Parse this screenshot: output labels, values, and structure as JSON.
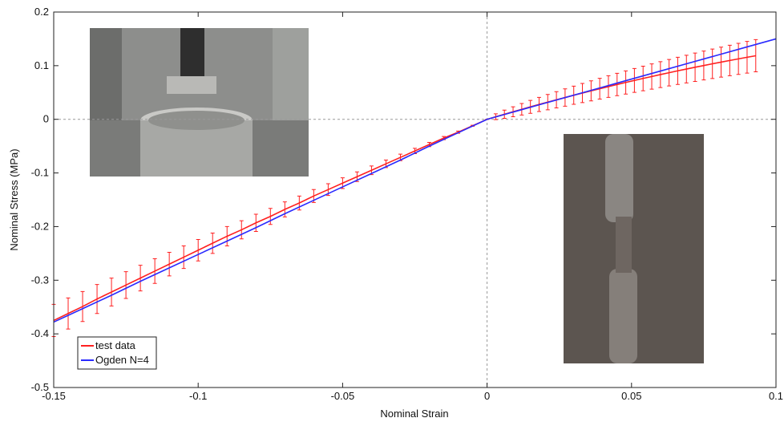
{
  "chart_data": {
    "type": "line",
    "x_label": "Nominal Strain",
    "y_label": "Nominal Stress (MPa)",
    "xlim": [
      -0.15,
      0.1
    ],
    "ylim": [
      -0.5,
      0.2
    ],
    "xticks": [
      -0.15,
      -0.1,
      -0.05,
      0,
      0.05,
      0.1
    ],
    "yticks": [
      -0.5,
      -0.4,
      -0.3,
      -0.2,
      -0.1,
      0,
      0.1,
      0.2
    ],
    "legend": "lower left",
    "series": [
      {
        "name": "test data",
        "color": "#ff2020",
        "x": [
          -0.15,
          -0.145,
          -0.14,
          -0.135,
          -0.13,
          -0.125,
          -0.12,
          -0.115,
          -0.11,
          -0.105,
          -0.1,
          -0.095,
          -0.09,
          -0.085,
          -0.08,
          -0.075,
          -0.07,
          -0.065,
          -0.06,
          -0.055,
          -0.05,
          -0.045,
          -0.04,
          -0.035,
          -0.03,
          -0.025,
          -0.02,
          -0.015,
          -0.01,
          -0.005,
          0,
          0.003,
          0.006,
          0.009,
          0.012,
          0.015,
          0.018,
          0.021,
          0.024,
          0.027,
          0.03,
          0.033,
          0.036,
          0.039,
          0.042,
          0.045,
          0.048,
          0.051,
          0.054,
          0.057,
          0.06,
          0.063,
          0.066,
          0.069,
          0.072,
          0.075,
          0.078,
          0.081,
          0.084,
          0.087,
          0.09,
          0.093
        ],
        "values": [
          -0.375,
          -0.362,
          -0.349,
          -0.335,
          -0.322,
          -0.309,
          -0.296,
          -0.283,
          -0.27,
          -0.257,
          -0.244,
          -0.231,
          -0.218,
          -0.206,
          -0.193,
          -0.181,
          -0.168,
          -0.156,
          -0.143,
          -0.131,
          -0.119,
          -0.107,
          -0.095,
          -0.083,
          -0.071,
          -0.059,
          -0.047,
          -0.035,
          -0.024,
          -0.012,
          0,
          0.0048,
          0.0095,
          0.0141,
          0.0187,
          0.0232,
          0.0277,
          0.0321,
          0.0364,
          0.0406,
          0.0449,
          0.049,
          0.0531,
          0.0571,
          0.061,
          0.0649,
          0.0687,
          0.0725,
          0.0762,
          0.0798,
          0.0834,
          0.0869,
          0.0904,
          0.0937,
          0.0971,
          0.1003,
          0.1035,
          0.1066,
          0.1097,
          0.1127,
          0.1157,
          0.1185
        ],
        "errors": [
          0.03,
          0.029,
          0.028,
          0.027,
          0.026,
          0.025,
          0.024,
          0.023,
          0.022,
          0.021,
          0.02,
          0.019,
          0.018,
          0.017,
          0.016,
          0.015,
          0.014,
          0.013,
          0.012,
          0.011,
          0.01,
          0.009,
          0.008,
          0.007,
          0.006,
          0.005,
          0.004,
          0.003,
          0.002,
          0.001,
          0,
          0.0054,
          0.0076,
          0.0093,
          0.0108,
          0.0121,
          0.0132,
          0.0143,
          0.0152,
          0.0162,
          0.017,
          0.0179,
          0.0187,
          0.0194,
          0.0202,
          0.0209,
          0.0216,
          0.0222,
          0.0229,
          0.0235,
          0.0241,
          0.0247,
          0.0253,
          0.0258,
          0.0264,
          0.0269,
          0.0275,
          0.028,
          0.0285,
          0.029,
          0.0295,
          0.03
        ]
      },
      {
        "name": "Ogden N=4",
        "color": "#2a2aff",
        "x": [
          -0.15,
          -0.14,
          -0.13,
          -0.12,
          -0.11,
          -0.1,
          -0.09,
          -0.08,
          -0.07,
          -0.06,
          -0.05,
          -0.04,
          -0.03,
          -0.02,
          -0.01,
          0,
          0.01,
          0.02,
          0.03,
          0.04,
          0.05,
          0.06,
          0.07,
          0.08,
          0.09,
          0.1
        ],
        "values": [
          -0.378,
          -0.353,
          -0.328,
          -0.302,
          -0.277,
          -0.252,
          -0.227,
          -0.202,
          -0.176,
          -0.151,
          -0.126,
          -0.101,
          -0.076,
          -0.05,
          -0.025,
          0,
          0.015,
          0.03,
          0.045,
          0.06,
          0.075,
          0.09,
          0.105,
          0.12,
          0.135,
          0.15
        ]
      }
    ]
  }
}
